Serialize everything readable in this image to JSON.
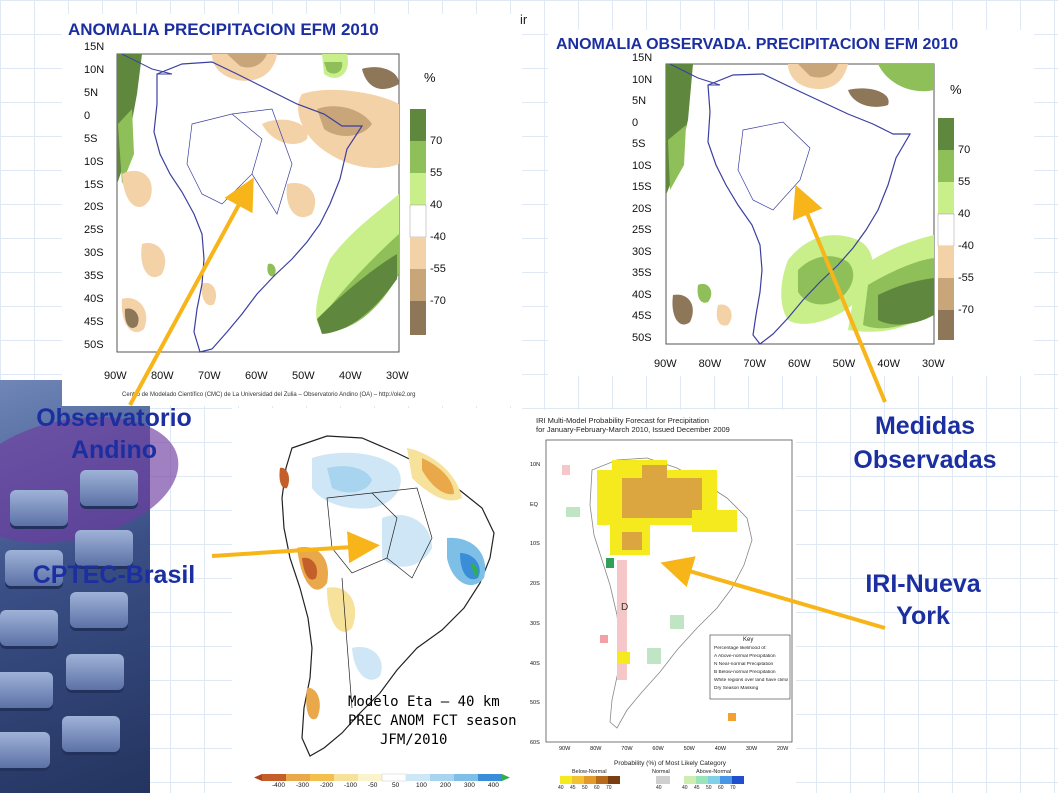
{
  "panels": {
    "oa": {
      "title": "ANOMALIA PRECIPITACION EFM 2010",
      "unit": "%",
      "credit": "Centro de Modelado Científico (CMC) de La Universidad del Zulia – Observatorio Andino (OA) – http://ole2.org",
      "lat_labels": [
        "15N",
        "10N",
        "5N",
        "0",
        "5S",
        "10S",
        "15S",
        "20S",
        "25S",
        "30S",
        "35S",
        "40S",
        "45S",
        "50S"
      ],
      "lon_labels": [
        "90W",
        "80W",
        "70W",
        "60W",
        "50W",
        "40W",
        "30W"
      ],
      "colorbar_labels": [
        "70",
        "55",
        "40",
        "-40",
        "-55",
        "-70"
      ]
    },
    "obs": {
      "title": "ANOMALIA OBSERVADA. PRECIPITACION EFM 2010",
      "unit": "%",
      "lat_labels": [
        "15N",
        "10N",
        "5N",
        "0",
        "5S",
        "10S",
        "15S",
        "20S",
        "25S",
        "30S",
        "35S",
        "40S",
        "45S",
        "50S"
      ],
      "lon_labels": [
        "90W",
        "80W",
        "70W",
        "60W",
        "50W",
        "40W",
        "30W"
      ],
      "colorbar_labels": [
        "70",
        "55",
        "40",
        "-40",
        "-55",
        "-70"
      ]
    },
    "cptec": {
      "caption_lines": [
        "Modelo Eta – 40 km",
        "PREC ANOM FCT season",
        "JFM/2010"
      ],
      "scale_labels": [
        "-400",
        "-300",
        "-200",
        "-100",
        "-50",
        "50",
        "100",
        "200",
        "300",
        "400"
      ]
    },
    "iri": {
      "title_lines": [
        "IRI Multi-Model Probability Forecast for Precipitation",
        "for January-February-March 2010, Issued December 2009"
      ],
      "lat_labels": [
        "10N",
        "EQ",
        "10S",
        "20S",
        "30S",
        "40S",
        "50S",
        "60S"
      ],
      "lon_labels": [
        "90W",
        "80W",
        "70W",
        "60W",
        "50W",
        "40W",
        "30W",
        "20W"
      ],
      "key_title": "Key",
      "key_lines": [
        "Percentage likelihood of:",
        "A  Above-normal Precipitation",
        "N  Near-normal Precipitation",
        "B  Below-normal Precipitation",
        "White regions over land have climatological probabilities",
        "Dry Season Masking"
      ],
      "dry_mark": "D",
      "legend_title": "Probability (%) of Most Likely Category",
      "legend_groups": [
        "Below-Normal",
        "Normal",
        "Above-Normal"
      ],
      "legend_below": [
        "40",
        "45",
        "50",
        "60",
        "70"
      ],
      "legend_normal": [
        "40"
      ],
      "legend_above": [
        "40",
        "45",
        "50",
        "60",
        "70"
      ]
    }
  },
  "labels": {
    "oa": [
      "Observatorio",
      "Andino"
    ],
    "obs": [
      "Medidas",
      "Observadas"
    ],
    "cptec": "CPTEC-Brasil",
    "iri": [
      "IRI-Nueva",
      "York"
    ]
  },
  "stray_text": "ir",
  "colors": {
    "title_blue": "#1c2fa0",
    "arrow": "#f7b51a",
    "green_dark": "#5f873d",
    "green_mid": "#8fbf58",
    "green_light": "#c8ef8a",
    "brown_light": "#f4d2a8",
    "brown_mid": "#c9a57a",
    "brown_dark": "#8e7659"
  }
}
